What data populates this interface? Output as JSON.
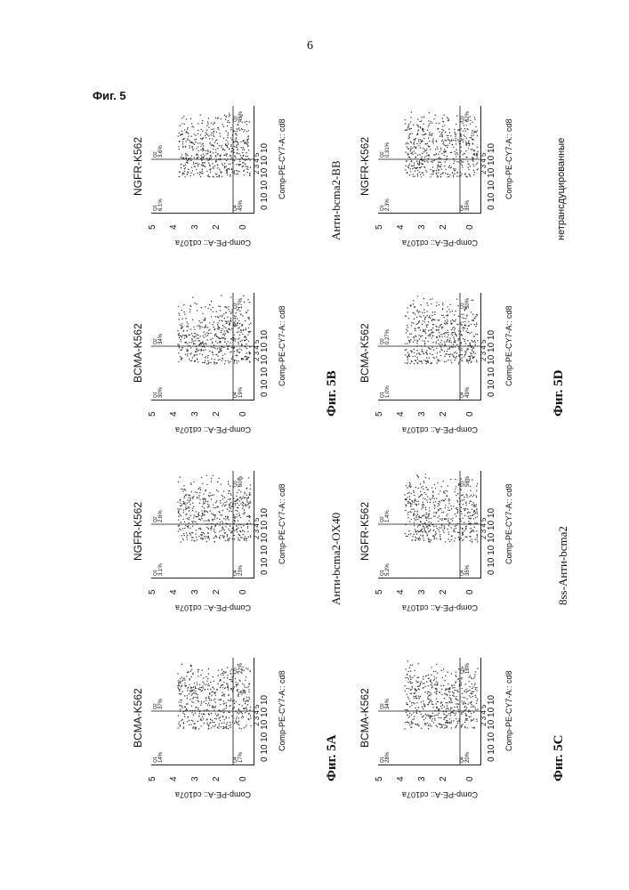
{
  "page_number": "6",
  "figure_title": "Фиг. 5",
  "axis": {
    "x_label": "Comp-PE-CY7-A:: cd8",
    "y_label": "Comp-PE-A:: cd107a",
    "x_ticks": "0 10 10 10 10 10",
    "x_ticks_sup": "2 3 4 5",
    "y_ticks": [
      "5",
      "4",
      "3",
      "2",
      "0"
    ]
  },
  "panels": [
    {
      "label": "Фиг. 5A",
      "condition": "Анти-bcma2-OX40",
      "plots": [
        {
          "title": "BCMA-K562",
          "q1": "14%",
          "q2": "37%",
          "q3": "22%",
          "q4": "17%"
        },
        {
          "title": "NGFR-K562",
          "q1": "3.1%",
          "q2": "2.6%",
          "q3": "60%",
          "q4": "23%"
        }
      ]
    },
    {
      "label": "Фиг. 5B",
      "condition": "Анти-bcma2-BB",
      "plots": [
        {
          "title": "BCMA-K562",
          "q1": "30%",
          "q2": "34%",
          "q3": "17%",
          "q4": "19%"
        },
        {
          "title": "NGFR-K562",
          "q1": "6.1%",
          "q2": "3.6%",
          "q3": "45%",
          "q4": "45%"
        }
      ]
    },
    {
      "label": "Фиг. 5C",
      "condition": "8ss-Анти-bcma2",
      "plots": [
        {
          "title": "BCMA-K562",
          "q1": "28%",
          "q2": "34%",
          "q3": "18%",
          "q4": "20%"
        },
        {
          "title": "NGFR-K562",
          "q1": "5.2%",
          "q2": "1.4%",
          "q3": "58%",
          "q4": "35%"
        }
      ]
    },
    {
      "label": "Фиг. 5D",
      "condition": "нетрансдуцированные",
      "plots": [
        {
          "title": "BCMA-K562",
          "q1": "1.0%",
          "q2": "0.27%",
          "q3": "50%",
          "q4": "49%"
        },
        {
          "title": "NGFR-K562",
          "q1": "2.3%",
          "q2": "0.31%",
          "q3": "62%",
          "q4": "35%"
        }
      ]
    }
  ]
}
